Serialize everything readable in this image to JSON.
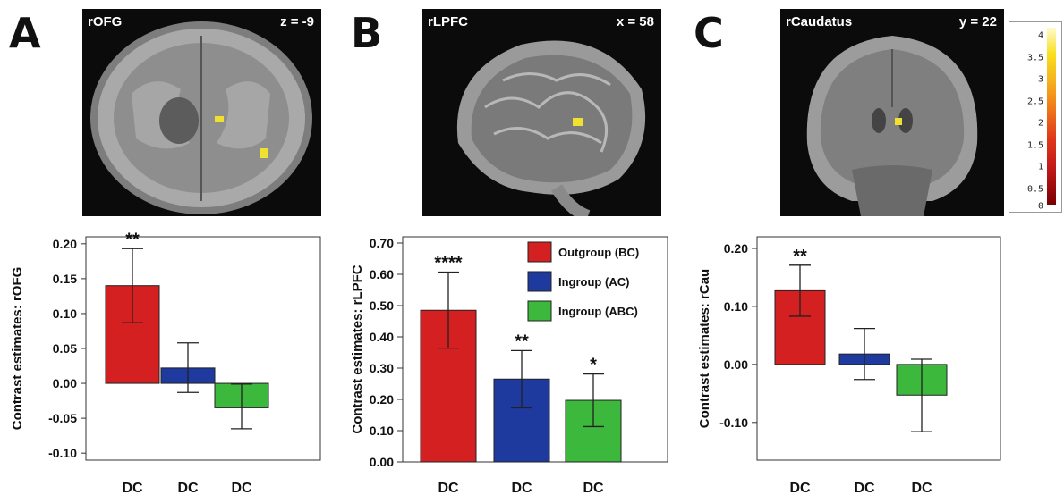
{
  "panels": [
    {
      "letter": "A",
      "region": "rOFG",
      "coord": "z = -9"
    },
    {
      "letter": "B",
      "region": "rLPFC",
      "coord": "x = 58"
    },
    {
      "letter": "C",
      "region": "rCaudatus",
      "coord": "y = 22"
    }
  ],
  "colorbar": {
    "ticks": [
      "4",
      "3.5",
      "3",
      "2.5",
      "2",
      "1.5",
      "1",
      "0.5",
      "0"
    ]
  },
  "legend": [
    {
      "label": "Outgroup (BC)",
      "color": "#d42020"
    },
    {
      "label": "Ingroup (AC)",
      "color": "#1f3a9e"
    },
    {
      "label": "Ingroup (ABC)",
      "color": "#3cb83c"
    }
  ],
  "chart_data": [
    {
      "type": "bar",
      "categories": [
        "DC",
        "DC",
        "DC"
      ],
      "ylabel": "Contrast estimates: rOFG",
      "ylim": [
        -0.11,
        0.21
      ],
      "ticks": [
        0.2,
        0.15,
        0.1,
        0.05,
        0.0,
        -0.05,
        -0.1
      ],
      "tick_labels": [
        "0.20",
        "0.15",
        "0.10",
        "0.05",
        "0.00",
        "-0.05",
        "-0.10"
      ],
      "values": [
        0.14,
        0.022,
        -0.035
      ],
      "error_low": [
        0.087,
        -0.013,
        -0.065
      ],
      "error_high": [
        0.193,
        0.058,
        -0.001
      ],
      "significance": [
        "**",
        "",
        ""
      ],
      "colors": [
        "#d42020",
        "#1f3a9e",
        "#3cb83c"
      ]
    },
    {
      "type": "bar",
      "categories": [
        "DC",
        "DC",
        "DC"
      ],
      "ylabel": "Contrast estimates: rLPFC",
      "ylim": [
        0.0,
        0.72
      ],
      "ticks": [
        0.7,
        0.6,
        0.5,
        0.4,
        0.3,
        0.2,
        0.1,
        0.0
      ],
      "tick_labels": [
        "0.70",
        "0.60",
        "0.50",
        "0.40",
        "0.30",
        "0.20",
        "0.10",
        "0.00"
      ],
      "values": [
        0.485,
        0.265,
        0.197
      ],
      "error_low": [
        0.364,
        0.173,
        0.113
      ],
      "error_high": [
        0.607,
        0.356,
        0.281
      ],
      "significance": [
        "****",
        "**",
        "*"
      ],
      "colors": [
        "#d42020",
        "#1f3a9e",
        "#3cb83c"
      ]
    },
    {
      "type": "bar",
      "categories": [
        "DC",
        "DC",
        "DC"
      ],
      "ylabel": "Contrast estimates: rCau",
      "ylim": [
        -0.165,
        0.22
      ],
      "ticks": [
        0.2,
        0.1,
        0.0,
        -0.1
      ],
      "tick_labels": [
        "0.20",
        "0.10",
        "0.00",
        "-0.10"
      ],
      "values": [
        0.127,
        0.018,
        -0.053
      ],
      "error_low": [
        0.083,
        -0.026,
        -0.116
      ],
      "error_high": [
        0.171,
        0.062,
        0.009
      ],
      "significance": [
        "**",
        "",
        ""
      ],
      "colors": [
        "#d42020",
        "#1f3a9e",
        "#3cb83c"
      ]
    }
  ]
}
